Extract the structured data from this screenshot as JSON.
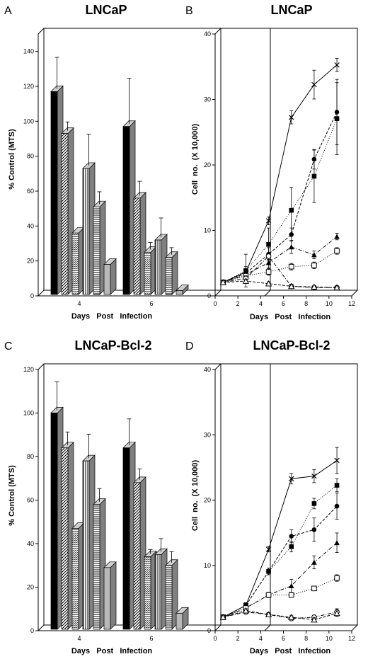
{
  "chart_data": [
    {
      "panel": "A",
      "type": "bar",
      "title": "LNCaP",
      "xlabel": "Days   Post   Infection",
      "ylabel": "% Control  (MTS)",
      "ylim": [
        0,
        150
      ],
      "yticks": [
        "0",
        "20",
        "40",
        "60",
        "80",
        "100",
        "120",
        "140"
      ],
      "categories": [
        "4",
        "6"
      ],
      "series": [
        {
          "values": [
            117,
            97
          ],
          "errors": [
            18,
            26
          ],
          "pattern": "black"
        },
        {
          "values": [
            93,
            56
          ],
          "errors": [
            5,
            8
          ],
          "pattern": "diagonal"
        },
        {
          "values": [
            36,
            25
          ],
          "errors": [
            0,
            4
          ],
          "pattern": "zigzag"
        },
        {
          "values": [
            73,
            32
          ],
          "errors": [
            18,
            11
          ],
          "pattern": "vertical"
        },
        {
          "values": [
            51,
            22
          ],
          "errors": [
            7,
            4
          ],
          "pattern": "horizontal"
        },
        {
          "values": [
            18,
            3
          ],
          "errors": [
            0,
            0
          ],
          "pattern": "gray"
        }
      ]
    },
    {
      "panel": "B",
      "type": "line",
      "title": "LNCaP",
      "xlabel": "Days   Post   Infection",
      "ylabel": "Cell  no.  (X 10,000)",
      "xlim": [
        0,
        12
      ],
      "ylim": [
        0,
        40
      ],
      "xticks": [
        "0",
        "2",
        "4",
        "6",
        "8",
        "10",
        "12"
      ],
      "yticks": [
        "0",
        "10",
        "20",
        "30",
        "40"
      ],
      "series": [
        {
          "marker": "cross",
          "style": "solid",
          "x": [
            0.2,
            2.2,
            4.2,
            6.2,
            8.2,
            10.2
          ],
          "y": [
            1.2,
            2.8,
            10.6,
            26.4,
            31.4,
            34.4
          ],
          "err": [
            0.3,
            0.5,
            0.6,
            1.0,
            2.2,
            1.0
          ]
        },
        {
          "marker": "filled-circle",
          "style": "dashed",
          "x": [
            0.2,
            2.2,
            4.2,
            6.2,
            8.2,
            10.2
          ],
          "y": [
            1.2,
            2.6,
            5.5,
            8.5,
            20.0,
            27.2
          ],
          "err": [
            0.3,
            1.0,
            1.0,
            1.0,
            1.5,
            5.0
          ]
        },
        {
          "marker": "filled-square",
          "style": "dotted",
          "x": [
            0.2,
            2.2,
            4.2,
            6.2,
            8.2,
            10.2
          ],
          "y": [
            1.2,
            3.0,
            7.0,
            12.2,
            17.4,
            26.2
          ],
          "err": [
            0.3,
            2.5,
            2.5,
            3.5,
            4.0,
            5.5
          ]
        },
        {
          "marker": "filled-triangle",
          "style": "dashdot",
          "x": [
            0.2,
            2.2,
            4.2,
            6.2,
            8.2,
            10.2
          ],
          "y": [
            1.2,
            2.4,
            4.2,
            6.6,
            5.4,
            8.2
          ],
          "err": [
            0.3,
            0.4,
            0.8,
            1.0,
            0.6,
            0.5
          ]
        },
        {
          "marker": "open-square",
          "style": "dotted",
          "x": [
            0.2,
            2.2,
            4.2,
            6.2,
            8.2,
            10.2
          ],
          "y": [
            1.2,
            2.2,
            2.8,
            3.6,
            3.8,
            6.0
          ],
          "err": [
            0.3,
            0.4,
            0.5,
            0.5,
            0.5,
            0.5
          ]
        },
        {
          "marker": "open-circle",
          "style": "dashdot",
          "x": [
            0.2,
            2.2,
            4.2,
            6.2,
            8.2,
            10.2
          ],
          "y": [
            1.2,
            1.8,
            5.2,
            0.6,
            0.4,
            0.4
          ],
          "err": [
            0.3,
            0.4,
            0.5,
            0.3,
            0.2,
            0.2
          ]
        },
        {
          "marker": "open-triangle",
          "style": "dashed",
          "x": [
            0.2,
            2.2,
            4.2,
            6.2,
            8.2,
            10.2
          ],
          "y": [
            1.2,
            1.4,
            1.0,
            0.6,
            0.5,
            0.4
          ],
          "err": [
            0.3,
            0.3,
            0.3,
            0.2,
            0.2,
            0.2
          ]
        }
      ]
    },
    {
      "panel": "C",
      "type": "bar",
      "title": "LNCaP-Bcl-2",
      "xlabel": "Days   Post   Infection",
      "ylabel": "% Control  (MTS)",
      "ylim": [
        0,
        120
      ],
      "yticks": [
        "0",
        "20",
        "40",
        "60",
        "80",
        "100",
        "120"
      ],
      "categories": [
        "4",
        "6"
      ],
      "series": [
        {
          "values": [
            100,
            84
          ],
          "errors": [
            13,
            12
          ],
          "pattern": "black"
        },
        {
          "values": [
            84,
            68
          ],
          "errors": [
            6,
            5
          ],
          "pattern": "diagonal"
        },
        {
          "values": [
            47,
            34
          ],
          "errors": [
            0,
            2
          ],
          "pattern": "zigzag"
        },
        {
          "values": [
            78,
            35
          ],
          "errors": [
            11,
            6
          ],
          "pattern": "vertical"
        },
        {
          "values": [
            58,
            30
          ],
          "errors": [
            6,
            5
          ],
          "pattern": "horizontal"
        },
        {
          "values": [
            29,
            8
          ],
          "errors": [
            0,
            0
          ],
          "pattern": "gray"
        }
      ]
    },
    {
      "panel": "D",
      "type": "line",
      "title": "LNCaP-Bcl-2",
      "xlabel": "Days   Post   Infection",
      "ylabel": "Cell  no.  (X 10,000)",
      "xlim": [
        0,
        12
      ],
      "ylim": [
        0,
        40
      ],
      "xticks": [
        "0",
        "2",
        "4",
        "6",
        "8",
        "10",
        "12"
      ],
      "yticks": [
        "0",
        "10",
        "20",
        "30",
        "40"
      ],
      "series": [
        {
          "marker": "cross",
          "style": "solid",
          "x": [
            0.2,
            2.2,
            4.2,
            6.2,
            8.2,
            10.2
          ],
          "y": [
            1.2,
            3.0,
            11.6,
            22.4,
            22.8,
            25.2
          ],
          "err": [
            0.3,
            0.4,
            0.4,
            0.8,
            1.0,
            2.0
          ]
        },
        {
          "marker": "filled-square",
          "style": "dotted",
          "x": [
            0.2,
            2.2,
            4.2,
            6.2,
            8.2,
            10.2
          ],
          "y": [
            1.2,
            3.0,
            8.2,
            12.0,
            18.6,
            21.4
          ],
          "err": [
            0.3,
            0.4,
            0.5,
            0.8,
            0.8,
            1.0
          ]
        },
        {
          "marker": "filled-circle",
          "style": "dashed",
          "x": [
            0.2,
            2.2,
            4.2,
            6.2,
            8.2,
            10.2
          ],
          "y": [
            1.2,
            3.0,
            8.2,
            13.6,
            14.6,
            18.2
          ],
          "err": [
            0.3,
            0.4,
            0.5,
            1.0,
            1.8,
            2.0
          ]
        },
        {
          "marker": "filled-triangle",
          "style": "dashdot",
          "x": [
            0.2,
            2.2,
            4.2,
            6.2,
            8.2,
            10.2
          ],
          "y": [
            1.2,
            2.6,
            4.6,
            6.0,
            9.6,
            12.6
          ],
          "err": [
            0.3,
            0.3,
            0.4,
            1.0,
            1.0,
            1.5
          ]
        },
        {
          "marker": "open-square",
          "style": "dotted",
          "x": [
            0.2,
            2.2,
            4.2,
            6.2,
            8.2,
            10.2
          ],
          "y": [
            1.2,
            2.6,
            4.6,
            4.6,
            5.6,
            7.2
          ],
          "err": [
            0.3,
            0.3,
            0.3,
            0.3,
            0.3,
            0.5
          ]
        },
        {
          "marker": "open-circle",
          "style": "dashdot",
          "x": [
            0.2,
            2.2,
            4.2,
            6.2,
            8.2,
            10.2
          ],
          "y": [
            1.2,
            2.0,
            1.6,
            1.0,
            1.2,
            2.0
          ],
          "err": [
            0.3,
            0.3,
            0.3,
            0.3,
            0.3,
            0.5
          ]
        },
        {
          "marker": "open-triangle",
          "style": "dashed",
          "x": [
            0.2,
            2.2,
            4.2,
            6.2,
            8.2,
            10.2
          ],
          "y": [
            1.2,
            2.2,
            1.6,
            1.2,
            0.8,
            1.8
          ],
          "err": [
            0.3,
            0.3,
            0.3,
            0.3,
            0.3,
            0.5
          ]
        }
      ]
    }
  ]
}
